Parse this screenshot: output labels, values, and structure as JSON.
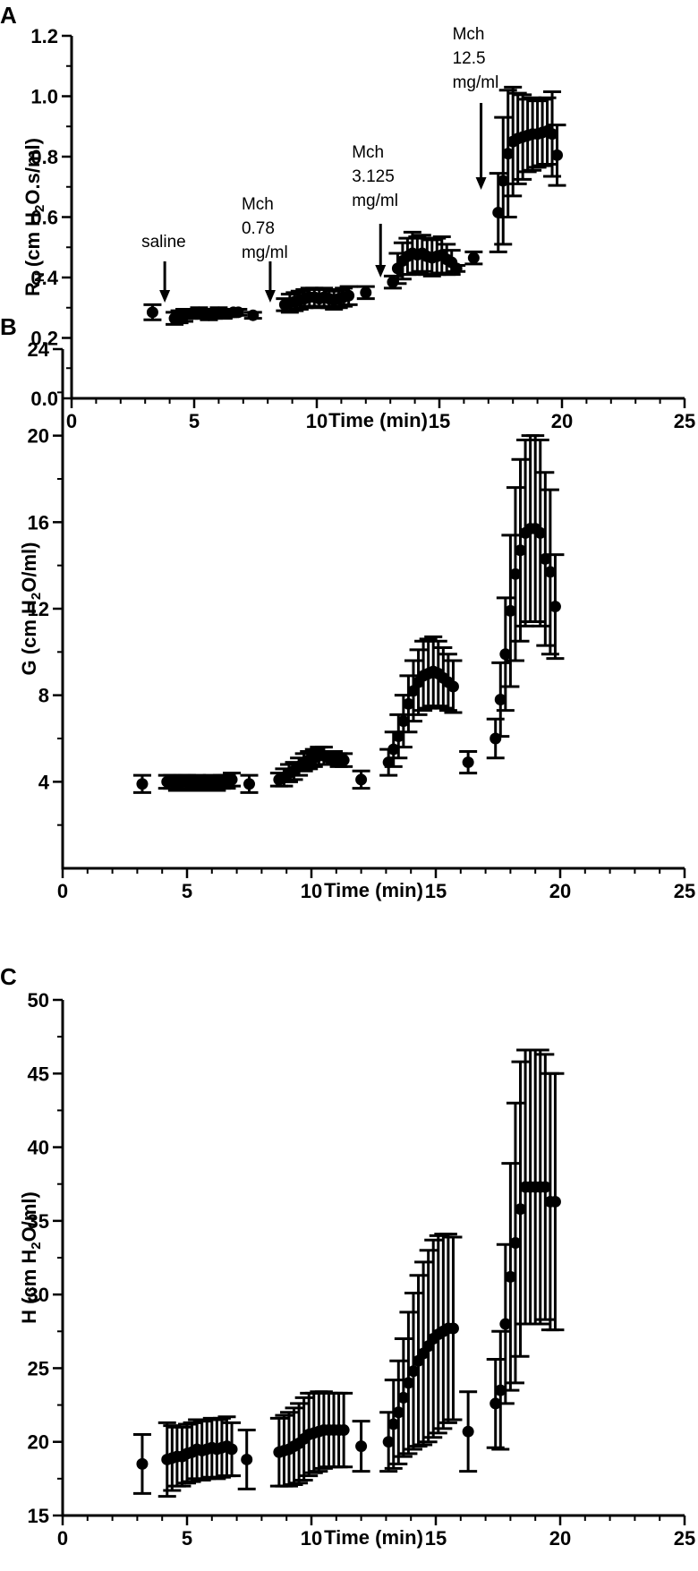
{
  "chart_data": [
    {
      "type": "scatter",
      "panel_label": "A",
      "ylabel_parts": [
        "R",
        "N",
        " (cm H",
        "2",
        "O.s/ml)"
      ],
      "xlabel": "Time (min)",
      "xlim": [
        0,
        25
      ],
      "ylim": [
        0.0,
        1.2
      ],
      "xticks": [
        0,
        5,
        10,
        15,
        20,
        25
      ],
      "xtick_labels": [
        "0",
        "5",
        "10",
        "15",
        "20",
        "25"
      ],
      "yticks": [
        0.0,
        0.2,
        0.4,
        0.6,
        0.8,
        1.0,
        1.2
      ],
      "ytick_labels": [
        "0.0",
        "0.2",
        "0.4",
        "0.6",
        "0.8",
        "1.0",
        "1.2"
      ],
      "series": [
        {
          "x": [
            3.3,
            4.2,
            4.4,
            4.6,
            4.8,
            5.0,
            5.2,
            5.4,
            5.6,
            5.8,
            6.0,
            6.2,
            6.4,
            6.6,
            6.8,
            7.4,
            8.7,
            8.9,
            9.1,
            9.3,
            9.5,
            9.7,
            9.9,
            10.1,
            10.3,
            10.5,
            10.7,
            10.9,
            11.1,
            11.3,
            12.0,
            13.1,
            13.3,
            13.5,
            13.7,
            13.9,
            14.1,
            14.3,
            14.5,
            14.7,
            14.9,
            15.1,
            15.3,
            15.5,
            15.7,
            16.4,
            17.4,
            17.6,
            17.8,
            18.0,
            18.2,
            18.4,
            18.6,
            18.8,
            19.0,
            19.2,
            19.4,
            19.6,
            19.8
          ],
          "y": [
            0.285,
            0.265,
            0.27,
            0.275,
            0.28,
            0.28,
            0.285,
            0.28,
            0.275,
            0.28,
            0.285,
            0.28,
            0.28,
            0.285,
            0.285,
            0.275,
            0.31,
            0.315,
            0.32,
            0.325,
            0.33,
            0.335,
            0.335,
            0.33,
            0.335,
            0.33,
            0.325,
            0.33,
            0.335,
            0.34,
            0.35,
            0.385,
            0.43,
            0.455,
            0.47,
            0.48,
            0.475,
            0.48,
            0.47,
            0.465,
            0.47,
            0.475,
            0.46,
            0.45,
            0.43,
            0.465,
            0.615,
            0.72,
            0.81,
            0.85,
            0.86,
            0.865,
            0.87,
            0.875,
            0.875,
            0.88,
            0.885,
            0.875,
            0.805
          ],
          "err": [
            0.025,
            0.02,
            0.02,
            0.02,
            0.015,
            0.015,
            0.015,
            0.015,
            0.015,
            0.015,
            0.015,
            0.015,
            0.01,
            0.01,
            0.01,
            0.01,
            0.02,
            0.03,
            0.03,
            0.03,
            0.03,
            0.03,
            0.03,
            0.03,
            0.03,
            0.03,
            0.03,
            0.03,
            0.03,
            0.03,
            0.02,
            0.02,
            0.05,
            0.06,
            0.06,
            0.07,
            0.06,
            0.06,
            0.06,
            0.06,
            0.06,
            0.06,
            0.05,
            0.04,
            0.01,
            0.02,
            0.13,
            0.21,
            0.21,
            0.18,
            0.15,
            0.14,
            0.12,
            0.12,
            0.11,
            0.11,
            0.11,
            0.14,
            0.1
          ]
        }
      ],
      "annotations": [
        {
          "lines": [
            "saline"
          ],
          "x": 3.8
        },
        {
          "lines": [
            "Mch",
            "0.78",
            "mg/ml"
          ],
          "x": 8.1
        },
        {
          "lines": [
            "Mch",
            "3.125",
            "mg/ml"
          ],
          "x": 12.6
        },
        {
          "lines": [
            "Mch",
            "12.5",
            "mg/ml"
          ],
          "x": 16.7
        }
      ]
    },
    {
      "type": "scatter",
      "panel_label": "B",
      "ylabel_parts": [
        "G (cm H",
        "2",
        "O/ml)"
      ],
      "xlabel": "Time (min)",
      "xlim": [
        0,
        25
      ],
      "ylim": [
        0,
        24
      ],
      "xticks": [
        0,
        5,
        10,
        15,
        20,
        25
      ],
      "xtick_labels": [
        "0",
        "5",
        "10",
        "15",
        "20",
        "25"
      ],
      "yticks": [
        4,
        8,
        12,
        16,
        20,
        24
      ],
      "ytick_labels": [
        "4",
        "8",
        "12",
        "16",
        "20",
        "24"
      ],
      "series": [
        {
          "x": [
            3.2,
            4.2,
            4.4,
            4.6,
            4.8,
            5.0,
            5.2,
            5.4,
            5.6,
            5.8,
            6.0,
            6.2,
            6.4,
            6.6,
            6.8,
            7.5,
            8.7,
            8.9,
            9.1,
            9.3,
            9.5,
            9.7,
            9.9,
            10.1,
            10.3,
            10.5,
            10.7,
            10.9,
            11.1,
            11.3,
            12.0,
            13.1,
            13.3,
            13.5,
            13.7,
            13.9,
            14.1,
            14.3,
            14.5,
            14.7,
            14.9,
            15.1,
            15.3,
            15.5,
            15.7,
            16.3,
            17.4,
            17.6,
            17.8,
            18.0,
            18.2,
            18.4,
            18.6,
            18.8,
            19.0,
            19.2,
            19.4,
            19.6,
            19.8
          ],
          "y": [
            3.9,
            4.0,
            4.0,
            3.9,
            4.0,
            4.0,
            3.9,
            4.0,
            3.9,
            3.9,
            4.0,
            3.9,
            4.0,
            4.0,
            4.1,
            3.9,
            4.1,
            4.2,
            4.4,
            4.5,
            4.7,
            4.9,
            5.0,
            5.1,
            5.2,
            5.2,
            5.1,
            5.1,
            5.0,
            5.0,
            4.1,
            4.9,
            5.5,
            6.1,
            6.8,
            7.6,
            8.2,
            8.6,
            8.9,
            9.0,
            9.1,
            9.0,
            8.8,
            8.6,
            8.4,
            4.9,
            6.0,
            7.8,
            9.9,
            11.9,
            13.6,
            14.7,
            15.5,
            15.7,
            15.7,
            15.5,
            14.3,
            13.7,
            12.1
          ],
          "err": [
            0.4,
            0.3,
            0.3,
            0.3,
            0.3,
            0.3,
            0.3,
            0.3,
            0.3,
            0.3,
            0.3,
            0.3,
            0.3,
            0.3,
            0.3,
            0.4,
            0.3,
            0.4,
            0.4,
            0.4,
            0.4,
            0.4,
            0.4,
            0.4,
            0.4,
            0.4,
            0.3,
            0.3,
            0.3,
            0.3,
            0.4,
            0.6,
            0.8,
            1.0,
            1.2,
            1.3,
            1.4,
            1.5,
            1.6,
            1.6,
            1.6,
            1.5,
            1.4,
            1.3,
            1.2,
            0.5,
            0.9,
            1.7,
            2.6,
            3.5,
            4.0,
            4.2,
            4.3,
            4.3,
            4.3,
            4.3,
            4.0,
            3.8,
            2.4
          ]
        }
      ],
      "annotations": []
    },
    {
      "type": "scatter",
      "panel_label": "C",
      "ylabel_parts": [
        "H (cm H",
        "2",
        "O/ml)"
      ],
      "xlabel": "Time (min)",
      "xlim": [
        0,
        25
      ],
      "ylim": [
        15,
        50
      ],
      "xticks": [
        0,
        5,
        10,
        15,
        20,
        25
      ],
      "xtick_labels": [
        "0",
        "5",
        "10",
        "15",
        "20",
        "25"
      ],
      "yticks": [
        15,
        20,
        25,
        30,
        35,
        40,
        45,
        50
      ],
      "ytick_labels": [
        "15",
        "20",
        "25",
        "30",
        "35",
        "40",
        "45",
        "50"
      ],
      "series": [
        {
          "x": [
            3.2,
            4.2,
            4.4,
            4.6,
            4.8,
            5.0,
            5.2,
            5.4,
            5.6,
            5.8,
            6.0,
            6.2,
            6.4,
            6.6,
            6.8,
            7.4,
            8.7,
            8.9,
            9.1,
            9.3,
            9.5,
            9.7,
            9.9,
            10.1,
            10.3,
            10.5,
            10.7,
            10.9,
            11.1,
            11.3,
            12.0,
            13.1,
            13.3,
            13.5,
            13.7,
            13.9,
            14.1,
            14.3,
            14.5,
            14.7,
            14.9,
            15.1,
            15.3,
            15.5,
            15.7,
            16.3,
            17.4,
            17.6,
            17.8,
            18.0,
            18.2,
            18.4,
            18.6,
            18.8,
            19.0,
            19.2,
            19.4,
            19.6,
            19.8
          ],
          "y": [
            18.5,
            18.8,
            18.9,
            19.0,
            19.0,
            19.2,
            19.3,
            19.5,
            19.4,
            19.5,
            19.6,
            19.5,
            19.6,
            19.7,
            19.5,
            18.8,
            19.3,
            19.4,
            19.5,
            19.7,
            19.9,
            20.2,
            20.5,
            20.6,
            20.7,
            20.8,
            20.8,
            20.8,
            20.8,
            20.8,
            19.7,
            20.0,
            21.2,
            22.0,
            23.0,
            24.0,
            24.8,
            25.5,
            26.0,
            26.5,
            27.0,
            27.3,
            27.5,
            27.7,
            27.7,
            20.7,
            22.6,
            23.5,
            28.0,
            31.2,
            33.5,
            35.8,
            37.3,
            37.3,
            37.3,
            37.3,
            37.3,
            36.3,
            36.3
          ],
          "err": [
            2.0,
            2.5,
            2.2,
            2.0,
            2.0,
            2.0,
            2.0,
            2.0,
            2.0,
            2.0,
            2.0,
            2.0,
            2.0,
            2.0,
            1.8,
            2.0,
            2.3,
            2.4,
            2.5,
            2.6,
            2.7,
            2.8,
            2.8,
            2.7,
            2.7,
            2.6,
            2.5,
            2.5,
            2.5,
            2.5,
            1.7,
            2.0,
            3.0,
            3.5,
            4.0,
            4.8,
            5.3,
            5.8,
            6.2,
            6.5,
            6.7,
            6.7,
            6.6,
            6.4,
            6.2,
            2.7,
            3.0,
            4.0,
            5.4,
            7.7,
            9.5,
            10.0,
            9.3,
            9.3,
            9.3,
            9.3,
            9.0,
            8.7,
            8.7
          ]
        }
      ],
      "annotations": []
    }
  ]
}
